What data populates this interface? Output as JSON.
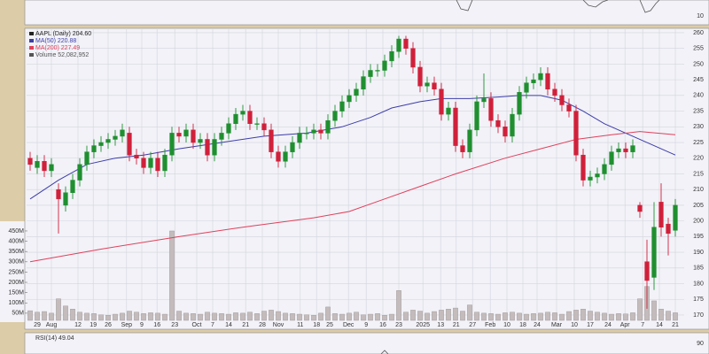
{
  "chart_data": {
    "type": "candlestick",
    "price": {
      "name": "AAPL (Daily) 204.60",
      "up_color": "#1f8f2f",
      "down_color": "#d0203a",
      "open": [
        220,
        217,
        219,
        216,
        210,
        205,
        209,
        213,
        218,
        222,
        224,
        225,
        226,
        227,
        228,
        221,
        220,
        217,
        220,
        216,
        221,
        228,
        227,
        229,
        225,
        226,
        221,
        226,
        228,
        231,
        234,
        235,
        231,
        231,
        229,
        222,
        219,
        222,
        225,
        228,
        228,
        229,
        228,
        232,
        235,
        238,
        240,
        242,
        246,
        248,
        248,
        251,
        254,
        258,
        255,
        249,
        243,
        244,
        242,
        234,
        236,
        224,
        222,
        229,
        238,
        239,
        232,
        230,
        227,
        234,
        241,
        244,
        245,
        247,
        242,
        240,
        237,
        235,
        221,
        213,
        214,
        215,
        218,
        222,
        223,
        222,
        205,
        187,
        182,
        206,
        199,
        197
      ],
      "high": [
        222,
        221,
        221,
        220,
        212,
        211,
        215,
        220,
        224,
        226,
        227,
        228,
        229,
        231,
        230,
        223,
        222,
        222,
        222,
        223,
        230,
        230,
        231,
        231,
        228,
        228,
        228,
        230,
        233,
        236,
        237,
        237,
        233,
        233,
        231,
        224,
        224,
        227,
        230,
        230,
        231,
        231,
        234,
        237,
        240,
        242,
        244,
        248,
        250,
        250,
        253,
        256,
        259,
        259,
        257,
        251,
        246,
        246,
        244,
        238,
        238,
        226,
        231,
        240,
        247,
        241,
        234,
        232,
        236,
        243,
        246,
        247,
        249,
        249,
        244,
        242,
        239,
        237,
        223,
        216,
        217,
        220,
        224,
        225,
        225,
        226,
        206,
        194,
        206,
        212,
        201,
        207
      ],
      "low": [
        216,
        215,
        214,
        214,
        196,
        203,
        207,
        211,
        216,
        220,
        222,
        223,
        224,
        225,
        219,
        218,
        215,
        215,
        214,
        214,
        219,
        225,
        225,
        223,
        223,
        219,
        219,
        224,
        226,
        229,
        232,
        229,
        229,
        227,
        220,
        217,
        217,
        220,
        223,
        226,
        226,
        226,
        226,
        230,
        233,
        236,
        238,
        240,
        244,
        246,
        246,
        249,
        252,
        253,
        247,
        241,
        241,
        240,
        232,
        232,
        222,
        220,
        220,
        227,
        236,
        230,
        228,
        225,
        225,
        232,
        239,
        242,
        243,
        240,
        238,
        235,
        233,
        219,
        211,
        211,
        212,
        213,
        216,
        220,
        220,
        220,
        201,
        172,
        178,
        195,
        189,
        195
      ],
      "close": [
        218,
        219,
        216,
        218,
        207,
        209,
        213,
        218,
        222,
        224,
        225,
        226,
        227,
        229,
        221,
        220,
        217,
        220,
        216,
        221,
        228,
        227,
        229,
        225,
        226,
        221,
        226,
        228,
        231,
        234,
        235,
        231,
        231,
        229,
        222,
        219,
        222,
        225,
        228,
        228,
        229,
        228,
        232,
        235,
        238,
        240,
        242,
        246,
        248,
        248,
        251,
        254,
        258,
        255,
        249,
        243,
        244,
        242,
        234,
        236,
        224,
        222,
        229,
        238,
        239,
        232,
        230,
        227,
        234,
        241,
        244,
        245,
        247,
        242,
        240,
        237,
        235,
        221,
        213,
        214,
        215,
        218,
        222,
        223,
        222,
        224,
        203,
        181,
        198,
        198,
        196,
        205
      ]
    },
    "series": [
      {
        "name": "MA(50) 220.88",
        "color": "#3d3da8",
        "x": [
          0,
          4,
          8,
          12,
          16,
          21,
          27,
          33,
          39,
          44,
          48,
          51,
          55,
          58,
          62,
          66,
          69,
          72,
          75,
          78,
          81,
          84,
          88,
          91
        ],
        "values": [
          207,
          213,
          218,
          220,
          221,
          223,
          225,
          227,
          228,
          230,
          233,
          236,
          238,
          239,
          239,
          239.5,
          240,
          240,
          238.5,
          235,
          231,
          228,
          224,
          221
        ]
      },
      {
        "name": "MA(200) 227.49",
        "color": "#e0405a",
        "x": [
          0,
          10,
          21,
          30,
          40,
          45,
          50,
          55,
          60,
          67,
          72,
          77,
          82,
          86,
          91
        ],
        "values": [
          187,
          191,
          195,
          198,
          201,
          203,
          207,
          211,
          215,
          220,
          223,
          226,
          227.5,
          228.5,
          227.5
        ]
      }
    ],
    "volume": {
      "name": "Volume 52,082,952",
      "color": "#c4bcbc",
      "values": [
        62000000,
        55000000,
        58000000,
        50000000,
        120000000,
        85000000,
        70000000,
        55000000,
        50000000,
        48000000,
        42000000,
        40000000,
        45000000,
        50000000,
        60000000,
        55000000,
        48000000,
        52000000,
        50000000,
        45000000,
        450000000,
        60000000,
        50000000,
        48000000,
        45000000,
        55000000,
        50000000,
        48000000,
        45000000,
        52000000,
        50000000,
        55000000,
        48000000,
        60000000,
        65000000,
        58000000,
        50000000,
        48000000,
        45000000,
        42000000,
        40000000,
        50000000,
        80000000,
        48000000,
        45000000,
        50000000,
        55000000,
        42000000,
        45000000,
        48000000,
        40000000,
        45000000,
        160000000,
        55000000,
        65000000,
        60000000,
        50000000,
        58000000,
        65000000,
        70000000,
        75000000,
        60000000,
        90000000,
        55000000,
        50000000,
        48000000,
        45000000,
        52000000,
        55000000,
        50000000,
        45000000,
        48000000,
        50000000,
        55000000,
        52000000,
        45000000,
        58000000,
        65000000,
        70000000,
        60000000,
        55000000,
        50000000,
        45000000,
        48000000,
        46000000,
        52000000,
        120000000,
        180000000,
        110000000,
        70000000,
        60000000,
        52082952
      ],
      "vlim": [
        15000000,
        480000000
      ],
      "vticks": [
        {
          "value": 50000000,
          "label": "50M"
        },
        {
          "value": 100000000,
          "label": "100M"
        },
        {
          "value": 150000000,
          "label": "150M"
        },
        {
          "value": 200000000,
          "label": "200M"
        },
        {
          "value": 250000000,
          "label": "250M"
        },
        {
          "value": 300000000,
          "label": "300M"
        },
        {
          "value": 350000000,
          "label": "350M"
        },
        {
          "value": 400000000,
          "label": "400M"
        },
        {
          "value": 450000000,
          "label": "450M"
        }
      ]
    },
    "xlim": [
      -0.5,
      92.25
    ],
    "xticks": [
      {
        "value": 1,
        "label": "29"
      },
      {
        "value": 3,
        "label": "Aug"
      },
      {
        "value": 6.75,
        "label": "12"
      },
      {
        "value": 8.9,
        "label": "19"
      },
      {
        "value": 11,
        "label": "26"
      },
      {
        "value": 13.6,
        "label": "Sep"
      },
      {
        "value": 15.75,
        "label": "9"
      },
      {
        "value": 17.9,
        "label": "16"
      },
      {
        "value": 20.4,
        "label": "23"
      },
      {
        "value": 23.5,
        "label": "Oct"
      },
      {
        "value": 25.75,
        "label": "7"
      },
      {
        "value": 28,
        "label": "14"
      },
      {
        "value": 30.4,
        "label": "21"
      },
      {
        "value": 32.75,
        "label": "28"
      },
      {
        "value": 35,
        "label": "Nov"
      },
      {
        "value": 38.1,
        "label": "11"
      },
      {
        "value": 40.4,
        "label": "18"
      },
      {
        "value": 42.25,
        "label": "25"
      },
      {
        "value": 44.9,
        "label": "Dec"
      },
      {
        "value": 47.4,
        "label": "9"
      },
      {
        "value": 49.75,
        "label": "16"
      },
      {
        "value": 52,
        "label": "23"
      },
      {
        "value": 55.4,
        "label": "2025"
      },
      {
        "value": 57.9,
        "label": "13"
      },
      {
        "value": 60.1,
        "label": "21"
      },
      {
        "value": 62.4,
        "label": "27"
      },
      {
        "value": 64.9,
        "label": "Feb"
      },
      {
        "value": 67.25,
        "label": "10"
      },
      {
        "value": 69.5,
        "label": "18"
      },
      {
        "value": 71.5,
        "label": "24"
      },
      {
        "value": 74.25,
        "label": "Mar"
      },
      {
        "value": 76.75,
        "label": "10"
      },
      {
        "value": 79,
        "label": "17"
      },
      {
        "value": 81.5,
        "label": "24"
      },
      {
        "value": 83.9,
        "label": "Apr"
      },
      {
        "value": 86.4,
        "label": "7"
      },
      {
        "value": 88.75,
        "label": "14"
      },
      {
        "value": 91,
        "label": "21"
      }
    ],
    "ylim": [
      168.3,
      261.4
    ],
    "yticks": [
      170,
      175,
      180,
      185,
      190,
      195,
      200,
      205,
      210,
      215,
      220,
      225,
      230,
      235,
      240,
      245,
      250,
      255,
      260
    ],
    "grid": true,
    "upper_panel": {
      "yticks": [
        10
      ]
    },
    "rsi_panel": {
      "label": "RSI(14) 49.04",
      "yticks": [
        90
      ]
    }
  }
}
